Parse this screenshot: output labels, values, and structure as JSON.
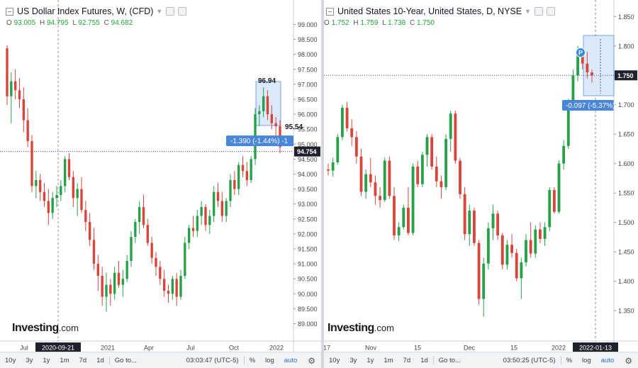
{
  "left": {
    "title": "US Dollar Index Futures, W, (CFD)",
    "ohlc": {
      "o": "93.005",
      "h": "94.795",
      "l": "92.755",
      "c": "94.682"
    },
    "logo": "Investing",
    "logo_suffix": ".com",
    "toolbar": {
      "ranges": [
        "10y",
        "3y",
        "1y",
        "1m",
        "7d",
        "1d"
      ],
      "goto": "Go to...",
      "time": "03:03:47 (UTC-5)",
      "percent": "%",
      "log": "log",
      "auto": "auto"
    }
  },
  "right": {
    "title": "United States 10-Year, United States, D, NYSE",
    "ohlc": {
      "o": "1.752",
      "h": "1.759",
      "l": "1.738",
      "c": "1.750"
    },
    "logo": "Investing",
    "logo_suffix": ".com",
    "toolbar": {
      "ranges": [
        "10y",
        "3y",
        "1y",
        "1m",
        "7d",
        "1d"
      ],
      "goto": "Go to...",
      "time": "03:50:25 (UTC-5)",
      "percent": "%",
      "log": "log",
      "auto": "auto"
    }
  },
  "colors": {
    "up": "#26a148",
    "down": "#d9443b",
    "accent": "#4a86d8",
    "price_tag": "#1e222d",
    "measure_fill": "#d7e8fb"
  },
  "chart_data": [
    {
      "type": "candlestick",
      "title": "US Dollar Index Futures, W, (CFD)",
      "ylim": [
        88.8,
        99.2
      ],
      "y_ticks": [
        "99.000",
        "98.500",
        "98.000",
        "97.500",
        "97.000",
        "96.500",
        "96.000",
        "95.500",
        "95.000",
        "94.500",
        "94.000",
        "93.500",
        "93.000",
        "92.500",
        "92.000",
        "91.500",
        "91.000",
        "90.500",
        "90.000",
        "89.500",
        "89.000"
      ],
      "x_ticks": [
        "Jul",
        "2020-09-21",
        "2021",
        "Apr",
        "Jul",
        "Oct",
        "2022"
      ],
      "last_price": "94.754",
      "measure": {
        "high_label": "96.94",
        "low_label": "95.54",
        "change_label": "-1.390 (-1.44%) -1"
      },
      "candles": [
        [
          98.2,
          98.3,
          96.3,
          96.6
        ],
        [
          96.6,
          97.4,
          95.7,
          97.1
        ],
        [
          97.1,
          97.5,
          96.5,
          96.8
        ],
        [
          96.8,
          97.2,
          96.2,
          96.5
        ],
        [
          96.5,
          96.9,
          95.4,
          95.8
        ],
        [
          95.8,
          96.2,
          94.9,
          95.1
        ],
        [
          95.1,
          95.3,
          93.4,
          93.6
        ],
        [
          93.6,
          94.1,
          93.2,
          93.8
        ],
        [
          93.8,
          94.0,
          93.1,
          93.4
        ],
        [
          93.4,
          93.7,
          92.9,
          93.1
        ],
        [
          93.1,
          93.5,
          92.3,
          92.7
        ],
        [
          92.7,
          93.4,
          92.5,
          93.2
        ],
        [
          93.2,
          93.6,
          92.9,
          93.3
        ],
        [
          93.3,
          93.8,
          93.1,
          93.6
        ],
        [
          93.6,
          94.6,
          93.4,
          94.5
        ],
        [
          94.5,
          94.7,
          93.8,
          93.9
        ],
        [
          93.9,
          94.1,
          92.9,
          93.2
        ],
        [
          93.2,
          93.7,
          92.6,
          93.5
        ],
        [
          93.5,
          93.9,
          92.7,
          92.8
        ],
        [
          92.8,
          93.1,
          92.1,
          92.4
        ],
        [
          92.4,
          92.7,
          91.6,
          91.8
        ],
        [
          91.8,
          92.2,
          90.8,
          91.0
        ],
        [
          91.0,
          91.3,
          90.1,
          90.6
        ],
        [
          90.6,
          90.9,
          89.6,
          89.9
        ],
        [
          89.9,
          90.7,
          89.4,
          90.3
        ],
        [
          90.3,
          90.5,
          89.6,
          90.0
        ],
        [
          90.0,
          90.9,
          89.8,
          90.7
        ],
        [
          90.7,
          91.1,
          90.2,
          90.3
        ],
        [
          90.3,
          90.8,
          89.9,
          90.5
        ],
        [
          90.5,
          91.3,
          90.4,
          91.1
        ],
        [
          91.1,
          92.1,
          90.9,
          91.9
        ],
        [
          91.9,
          92.5,
          91.7,
          92.4
        ],
        [
          92.4,
          93.1,
          92.0,
          92.9
        ],
        [
          92.9,
          93.3,
          92.2,
          92.3
        ],
        [
          92.3,
          92.5,
          91.6,
          91.7
        ],
        [
          91.7,
          91.9,
          91.0,
          91.2
        ],
        [
          91.2,
          91.4,
          90.6,
          90.9
        ],
        [
          90.9,
          91.1,
          90.3,
          90.5
        ],
        [
          90.5,
          90.8,
          89.9,
          90.1
        ],
        [
          90.1,
          90.3,
          89.7,
          90.0
        ],
        [
          90.0,
          90.6,
          89.8,
          90.5
        ],
        [
          90.5,
          90.7,
          89.6,
          89.9
        ],
        [
          89.9,
          90.8,
          89.8,
          90.6
        ],
        [
          90.6,
          91.9,
          90.5,
          91.7
        ],
        [
          91.7,
          92.3,
          91.5,
          92.2
        ],
        [
          92.2,
          92.6,
          91.9,
          92.1
        ],
        [
          92.1,
          92.8,
          91.9,
          92.6
        ],
        [
          92.6,
          93.1,
          92.3,
          92.9
        ],
        [
          92.9,
          93.0,
          92.1,
          92.3
        ],
        [
          92.3,
          92.8,
          92.0,
          92.6
        ],
        [
          92.6,
          93.6,
          92.4,
          93.4
        ],
        [
          93.4,
          93.7,
          92.9,
          93.1
        ],
        [
          93.1,
          93.4,
          92.4,
          92.6
        ],
        [
          92.6,
          93.2,
          92.4,
          93.1
        ],
        [
          93.1,
          94.0,
          92.9,
          93.8
        ],
        [
          93.8,
          94.1,
          93.3,
          93.5
        ],
        [
          93.5,
          94.4,
          93.3,
          94.3
        ],
        [
          94.3,
          94.6,
          93.9,
          94.1
        ],
        [
          94.1,
          94.4,
          93.6,
          93.8
        ],
        [
          93.8,
          94.6,
          93.7,
          94.5
        ],
        [
          94.5,
          96.2,
          94.3,
          96.0
        ],
        [
          96.0,
          96.3,
          95.6,
          96.1
        ],
        [
          96.1,
          96.9,
          95.9,
          96.6
        ],
        [
          96.6,
          96.8,
          95.8,
          96.0
        ],
        [
          96.0,
          96.3,
          95.5,
          95.7
        ],
        [
          95.7,
          95.9,
          95.2,
          95.6
        ],
        [
          95.6,
          95.8,
          94.7,
          94.9
        ]
      ]
    },
    {
      "type": "candlestick",
      "title": "United States 10-Year, United States, D, NYSE",
      "ylim": [
        1.32,
        1.86
      ],
      "y_ticks": [
        "1.850",
        "1.800",
        "1.750",
        "1.700",
        "1.650",
        "1.600",
        "1.550",
        "1.500",
        "1.450",
        "1.400",
        "1.350"
      ],
      "x_ticks": [
        "17",
        "Nov",
        "15",
        "Dec",
        "15",
        "2022",
        "2022-01-13"
      ],
      "last_price": "1.750",
      "measure": {
        "change_label": "-0.097 (-5.37%)"
      },
      "candles": [
        [
          1.59,
          1.6,
          1.58,
          1.588
        ],
        [
          1.588,
          1.61,
          1.578,
          1.602
        ],
        [
          1.602,
          1.65,
          1.598,
          1.645
        ],
        [
          1.645,
          1.7,
          1.64,
          1.695
        ],
        [
          1.695,
          1.705,
          1.655,
          1.66
        ],
        [
          1.66,
          1.675,
          1.63,
          1.645
        ],
        [
          1.645,
          1.655,
          1.6,
          1.612
        ],
        [
          1.612,
          1.625,
          1.545,
          1.552
        ],
        [
          1.552,
          1.59,
          1.54,
          1.582
        ],
        [
          1.582,
          1.61,
          1.56,
          1.568
        ],
        [
          1.568,
          1.58,
          1.53,
          1.545
        ],
        [
          1.545,
          1.56,
          1.525,
          1.538
        ],
        [
          1.538,
          1.61,
          1.535,
          1.605
        ],
        [
          1.605,
          1.612,
          1.54,
          1.545
        ],
        [
          1.545,
          1.56,
          1.47,
          1.478
        ],
        [
          1.478,
          1.5,
          1.468,
          1.492
        ],
        [
          1.492,
          1.53,
          1.488,
          1.525
        ],
        [
          1.525,
          1.56,
          1.478,
          1.482
        ],
        [
          1.482,
          1.6,
          1.478,
          1.595
        ],
        [
          1.595,
          1.605,
          1.56,
          1.565
        ],
        [
          1.565,
          1.62,
          1.56,
          1.615
        ],
        [
          1.615,
          1.65,
          1.595,
          1.645
        ],
        [
          1.645,
          1.65,
          1.59,
          1.595
        ],
        [
          1.595,
          1.612,
          1.56,
          1.57
        ],
        [
          1.57,
          1.58,
          1.54,
          1.56
        ],
        [
          1.56,
          1.65,
          1.555,
          1.642
        ],
        [
          1.642,
          1.69,
          1.62,
          1.685
        ],
        [
          1.685,
          1.69,
          1.6,
          1.605
        ],
        [
          1.605,
          1.61,
          1.54,
          1.548
        ],
        [
          1.548,
          1.56,
          1.47,
          1.48
        ],
        [
          1.48,
          1.53,
          1.46,
          1.52
        ],
        [
          1.52,
          1.525,
          1.46,
          1.465
        ],
        [
          1.465,
          1.47,
          1.36,
          1.37
        ],
        [
          1.37,
          1.44,
          1.34,
          1.43
        ],
        [
          1.43,
          1.5,
          1.42,
          1.49
        ],
        [
          1.49,
          1.53,
          1.47,
          1.515
        ],
        [
          1.515,
          1.52,
          1.47,
          1.478
        ],
        [
          1.478,
          1.482,
          1.42,
          1.428
        ],
        [
          1.428,
          1.47,
          1.42,
          1.462
        ],
        [
          1.462,
          1.48,
          1.44,
          1.448
        ],
        [
          1.448,
          1.455,
          1.4,
          1.405
        ],
        [
          1.405,
          1.44,
          1.37,
          1.432
        ],
        [
          1.432,
          1.48,
          1.425,
          1.47
        ],
        [
          1.47,
          1.5,
          1.44,
          1.447
        ],
        [
          1.447,
          1.495,
          1.44,
          1.488
        ],
        [
          1.488,
          1.5,
          1.465,
          1.472
        ],
        [
          1.472,
          1.5,
          1.46,
          1.492
        ],
        [
          1.492,
          1.56,
          1.485,
          1.555
        ],
        [
          1.555,
          1.56,
          1.515,
          1.518
        ],
        [
          1.518,
          1.605,
          1.515,
          1.6
        ],
        [
          1.6,
          1.64,
          1.59,
          1.63
        ],
        [
          1.63,
          1.71,
          1.625,
          1.705
        ],
        [
          1.705,
          1.76,
          1.695,
          1.75
        ],
        [
          1.75,
          1.8,
          1.74,
          1.792
        ],
        [
          1.792,
          1.795,
          1.76,
          1.77
        ],
        [
          1.77,
          1.79,
          1.745,
          1.755
        ],
        [
          1.755,
          1.76,
          1.738,
          1.75
        ]
      ]
    }
  ]
}
